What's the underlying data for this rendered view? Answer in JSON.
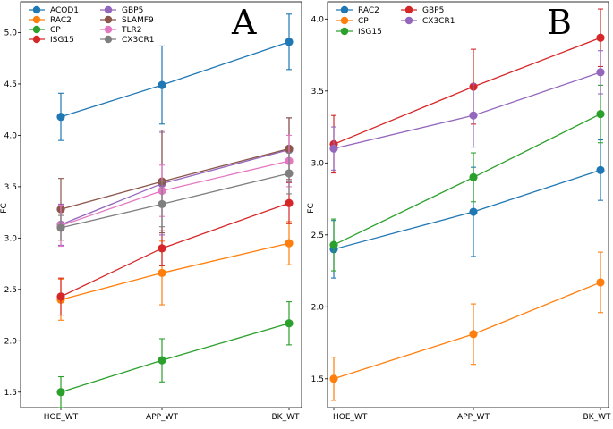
{
  "chart_data": [
    {
      "type": "line",
      "panel_label": "A",
      "xlabel": "",
      "ylabel": "FC",
      "categories": [
        "HOE_WT",
        "APP_WT",
        "BK_WT"
      ],
      "ylim": [
        1.35,
        5.3
      ],
      "yticks": [
        1.5,
        2.0,
        2.5,
        3.0,
        3.5,
        4.0,
        4.5,
        5.0
      ],
      "ytick_labels": [
        "1.5",
        "2.0",
        "2.5",
        "3.0",
        "3.5",
        "4.0",
        "4.5",
        "5.0"
      ],
      "legend_position": "top-left",
      "legend_columns": 2,
      "series": [
        {
          "name": "ACOD1",
          "color": "#1f77b4",
          "values": [
            4.18,
            4.49,
            4.91
          ],
          "errors": [
            0.23,
            0.38,
            0.27
          ]
        },
        {
          "name": "RAC2",
          "color": "#ff7f0e",
          "values": [
            2.4,
            2.66,
            2.95
          ],
          "errors": [
            0.2,
            0.31,
            0.21
          ]
        },
        {
          "name": "CP",
          "color": "#2ca02c",
          "values": [
            1.5,
            1.81,
            2.17
          ],
          "errors": [
            0.15,
            0.21,
            0.21
          ]
        },
        {
          "name": "ISG15",
          "color": "#d62728",
          "values": [
            2.43,
            2.9,
            3.34
          ],
          "errors": [
            0.18,
            0.17,
            0.2
          ]
        },
        {
          "name": "GBP5",
          "color": "#9467bd",
          "values": [
            3.13,
            3.53,
            3.86
          ],
          "errors": [
            0.2,
            0.5,
            0.31
          ]
        },
        {
          "name": "SLAMF9",
          "color": "#8c564b",
          "values": [
            3.28,
            3.55,
            3.87
          ],
          "errors": [
            0.3,
            0.5,
            0.3
          ]
        },
        {
          "name": "TLR2",
          "color": "#e377c2",
          "values": [
            3.12,
            3.46,
            3.75
          ],
          "errors": [
            0.2,
            0.25,
            0.25
          ]
        },
        {
          "name": "CX3CR1",
          "color": "#7f7f7f",
          "values": [
            3.1,
            3.33,
            3.63
          ],
          "errors": [
            0.12,
            0.22,
            0.2
          ]
        }
      ]
    },
    {
      "type": "line",
      "panel_label": "B",
      "xlabel": "",
      "ylabel": "FC",
      "categories": [
        "HOE_WT",
        "APP_WT",
        "BK_WT"
      ],
      "ylim": [
        1.3,
        4.12
      ],
      "yticks": [
        1.5,
        2.0,
        2.5,
        3.0,
        3.5,
        4.0
      ],
      "ytick_labels": [
        "1.5",
        "2.0",
        "2.5",
        "3.0",
        "3.5",
        "4.0"
      ],
      "legend_position": "top-left",
      "legend_columns": 2,
      "series": [
        {
          "name": "RAC2",
          "color": "#1f77b4",
          "values": [
            2.4,
            2.66,
            2.95
          ],
          "errors": [
            0.2,
            0.31,
            0.21
          ]
        },
        {
          "name": "CP",
          "color": "#ff7f0e",
          "values": [
            1.5,
            1.81,
            2.17
          ],
          "errors": [
            0.15,
            0.21,
            0.21
          ]
        },
        {
          "name": "ISG15",
          "color": "#2ca02c",
          "values": [
            2.43,
            2.9,
            3.34
          ],
          "errors": [
            0.18,
            0.17,
            0.2
          ]
        },
        {
          "name": "GBP5",
          "color": "#d62728",
          "values": [
            3.13,
            3.53,
            3.87
          ],
          "errors": [
            0.2,
            0.26,
            0.2
          ]
        },
        {
          "name": "CX3CR1",
          "color": "#9467bd",
          "values": [
            3.1,
            3.33,
            3.63
          ],
          "errors": [
            0.15,
            0.22,
            0.15
          ]
        }
      ]
    }
  ]
}
